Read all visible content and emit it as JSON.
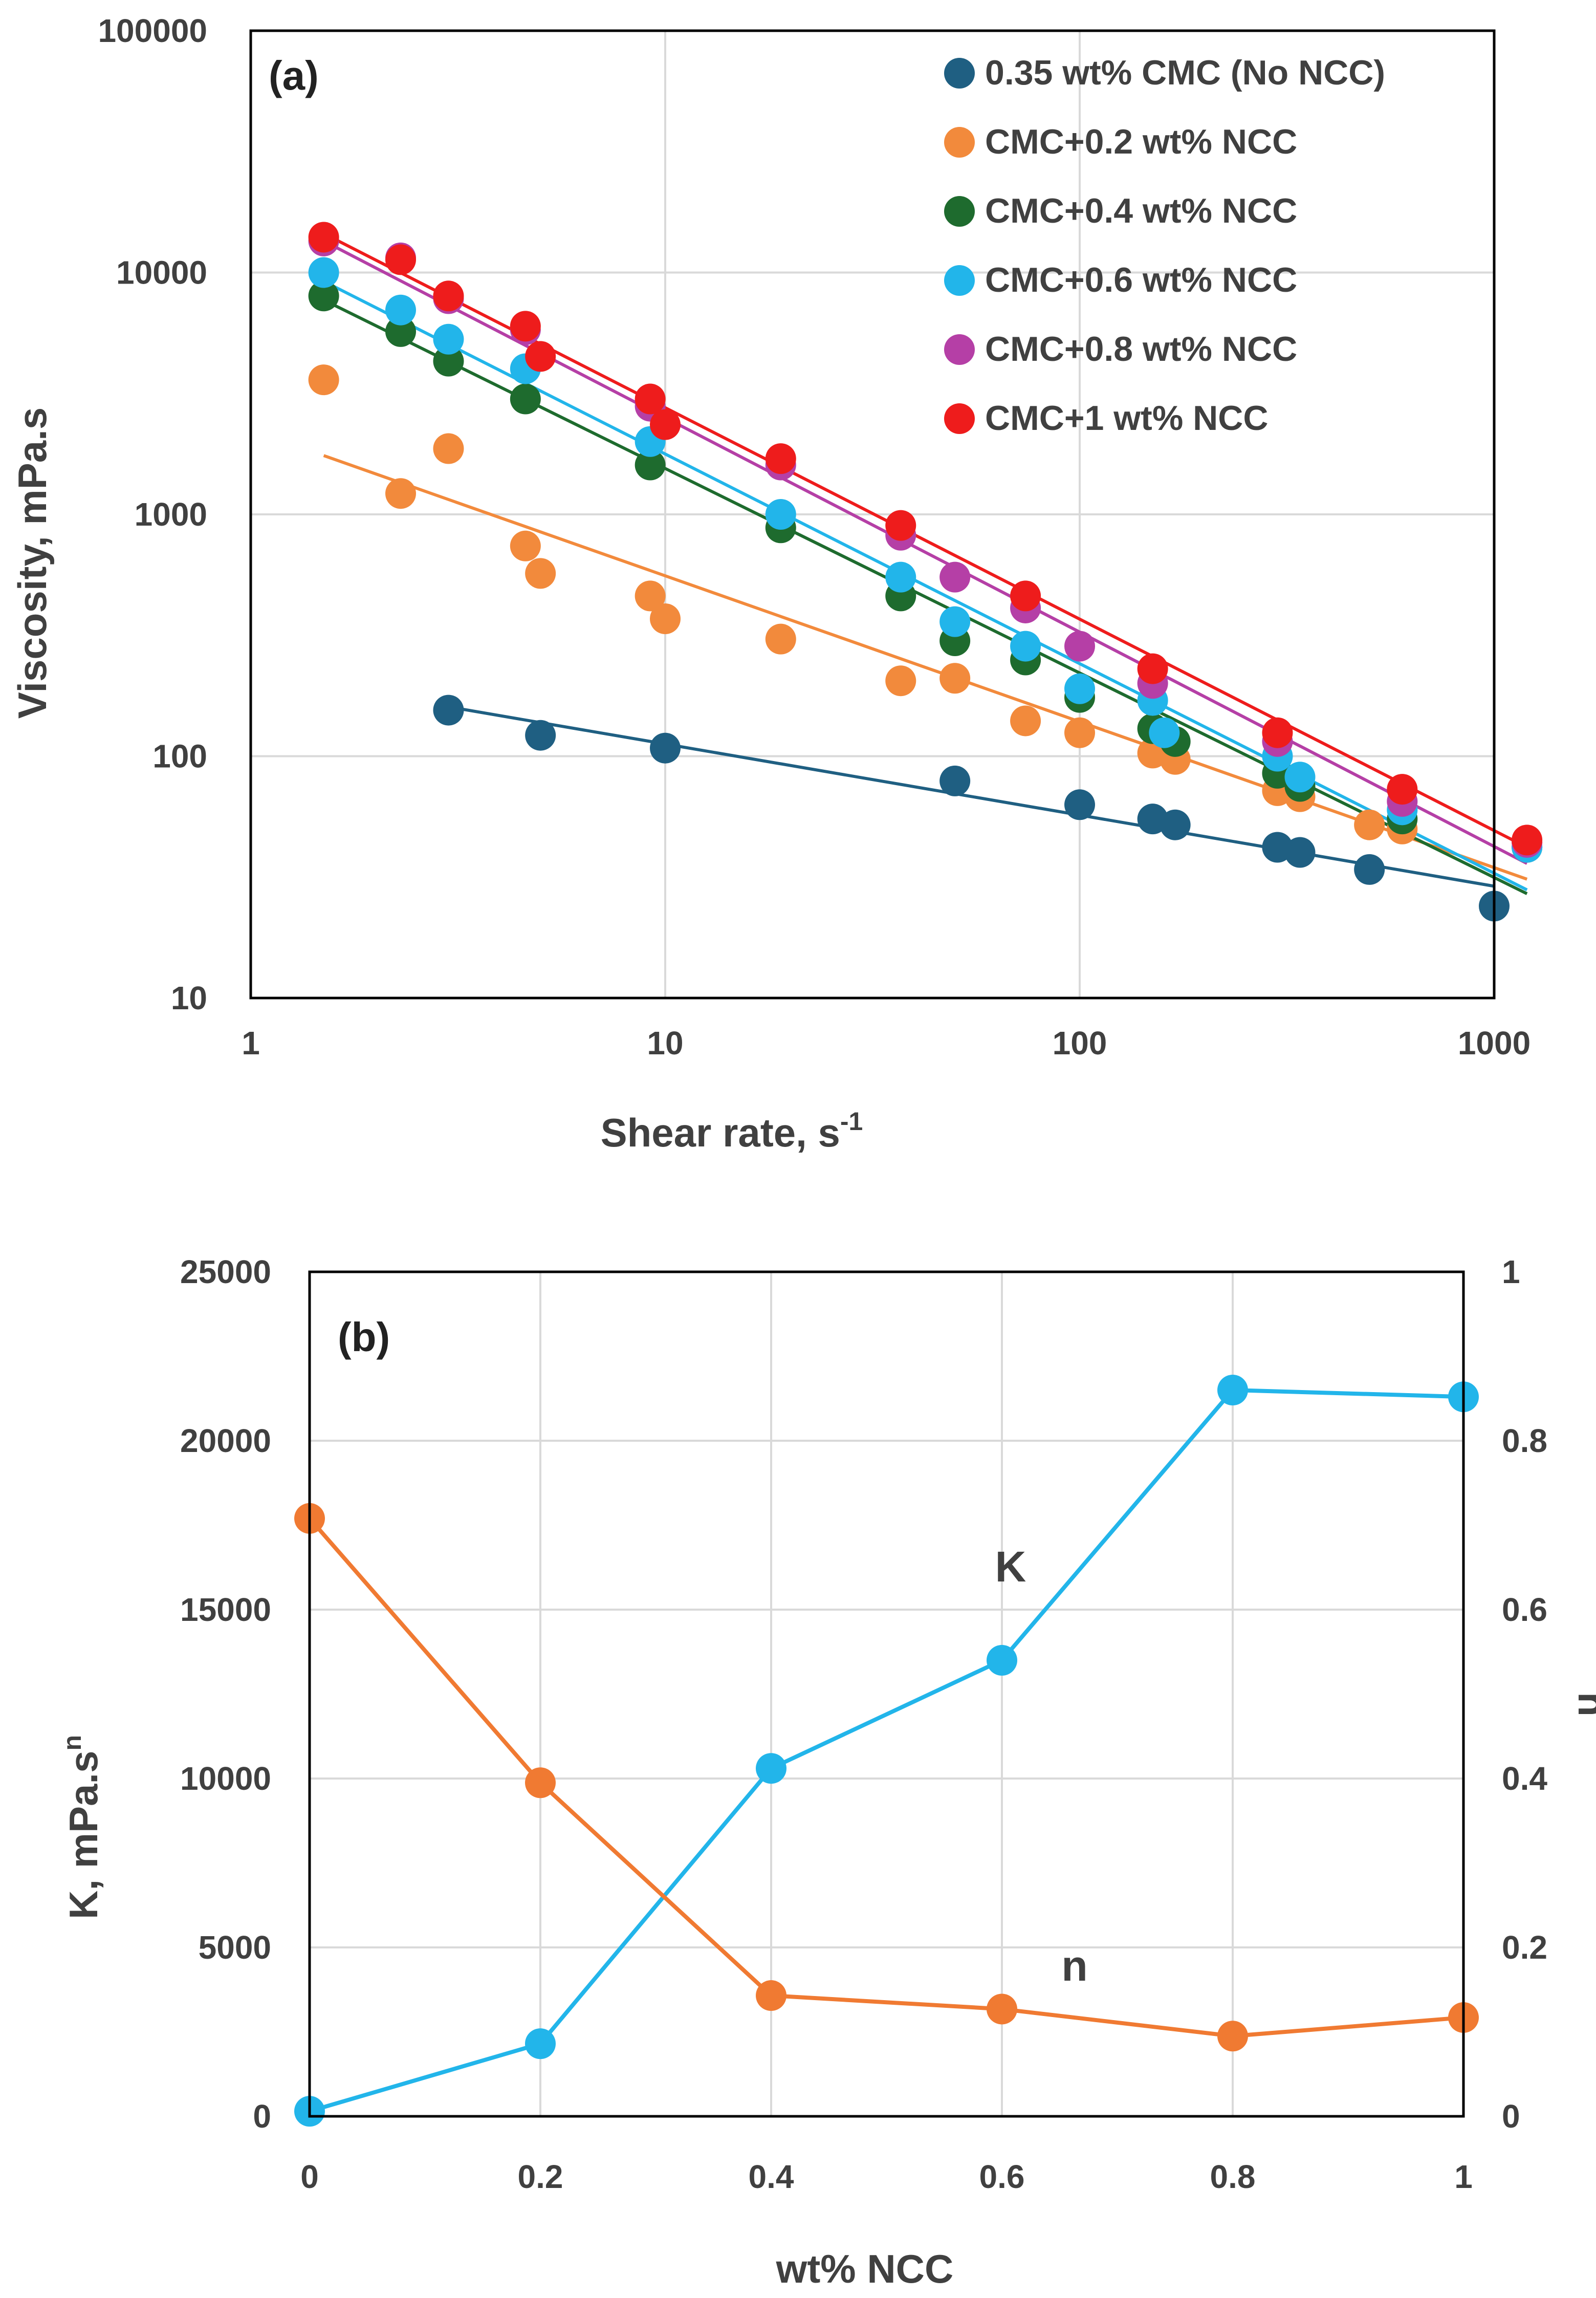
{
  "chart_data": [
    {
      "type": "scatter",
      "panel_label": "(a)",
      "xlabel": "Shear rate, s",
      "xlabel_sup": "-1",
      "ylabel": "Viscosity, mPa.s",
      "x_scale": "log",
      "y_scale": "log",
      "xlim": [
        1,
        1000
      ],
      "ylim": [
        10,
        100000
      ],
      "x_ticks": [
        "1",
        "10",
        "100",
        "1000"
      ],
      "y_ticks": [
        "10",
        "100",
        "1000",
        "10000",
        "100000"
      ],
      "grid": true,
      "legend_position": "top-right",
      "series": [
        {
          "name": "0.35 wt% CMC (No NCC)",
          "color": "#1f5f82",
          "points": [
            [
              3,
              155
            ],
            [
              5,
              122
            ],
            [
              10,
              108
            ],
            [
              50,
              79
            ],
            [
              100,
              63
            ],
            [
              150,
              55
            ],
            [
              170,
              52
            ],
            [
              300,
              42
            ],
            [
              340,
              40
            ],
            [
              500,
              34
            ],
            [
              1000,
              24
            ]
          ],
          "fit": [
            [
              3,
              160
            ],
            [
              1000,
              29
            ]
          ]
        },
        {
          "name": "CMC+0.2 wt% NCC",
          "color": "#f28a3c",
          "points": [
            [
              1.5,
              3600
            ],
            [
              2.3,
              1220
            ],
            [
              3,
              1870
            ],
            [
              4.6,
              740
            ],
            [
              5,
              570
            ],
            [
              9.2,
              460
            ],
            [
              10,
              370
            ],
            [
              19,
              305
            ],
            [
              37,
              205
            ],
            [
              50,
              210
            ],
            [
              74,
              140
            ],
            [
              100,
              125
            ],
            [
              150,
              103
            ],
            [
              170,
              97
            ],
            [
              300,
              72
            ],
            [
              340,
              68
            ],
            [
              500,
              52
            ],
            [
              600,
              50
            ],
            [
              1200,
              44
            ]
          ],
          "fit": [
            [
              1.5,
              1750
            ],
            [
              1200,
              31
            ]
          ]
        },
        {
          "name": "CMC+0.4 wt% NCC",
          "color": "#1e6b2e",
          "points": [
            [
              1.5,
              8000
            ],
            [
              2.3,
              5700
            ],
            [
              3,
              4300
            ],
            [
              4.6,
              3000
            ],
            [
              9.2,
              1600
            ],
            [
              19,
              880
            ],
            [
              37,
              460
            ],
            [
              50,
              300
            ],
            [
              74,
              250
            ],
            [
              100,
              175
            ],
            [
              150,
              130
            ],
            [
              170,
              115
            ],
            [
              300,
              85
            ],
            [
              340,
              75
            ],
            [
              600,
              55
            ],
            [
              1200,
              42
            ]
          ],
          "fit": [
            [
              1.5,
              7700
            ],
            [
              1200,
              27
            ]
          ]
        },
        {
          "name": "CMC+0.6 wt% NCC",
          "color": "#22b5ea",
          "points": [
            [
              1.5,
              10000
            ],
            [
              2.3,
              7000
            ],
            [
              3,
              5300
            ],
            [
              4.6,
              4000
            ],
            [
              9.2,
              2000
            ],
            [
              19,
              1000
            ],
            [
              37,
              550
            ],
            [
              50,
              360
            ],
            [
              74,
              285
            ],
            [
              100,
              190
            ],
            [
              150,
              170
            ],
            [
              160,
              125
            ],
            [
              300,
              100
            ],
            [
              340,
              82
            ],
            [
              600,
              60
            ],
            [
              1200,
              42
            ]
          ],
          "fit": [
            [
              1.5,
              9200
            ],
            [
              1200,
              28
            ]
          ]
        },
        {
          "name": "CMC+0.8 wt% NCC",
          "color": "#b53fa6",
          "points": [
            [
              1.5,
              13500
            ],
            [
              2.3,
              11500
            ],
            [
              3,
              7800
            ],
            [
              4.6,
              5800
            ],
            [
              9.2,
              2800
            ],
            [
              19,
              1600
            ],
            [
              37,
              820
            ],
            [
              50,
              550
            ],
            [
              74,
              410
            ],
            [
              100,
              285
            ],
            [
              150,
              200
            ],
            [
              300,
              115
            ],
            [
              600,
              65
            ],
            [
              1200,
              44
            ]
          ],
          "fit": [
            [
              1.5,
              13500
            ],
            [
              1200,
              36
            ]
          ]
        },
        {
          "name": "CMC+1 wt% NCC",
          "color": "#ee1c1c",
          "points": [
            [
              1.5,
              14000
            ],
            [
              2.3,
              11300
            ],
            [
              3,
              8000
            ],
            [
              4.6,
              6000
            ],
            [
              5,
              4500
            ],
            [
              9.2,
              3000
            ],
            [
              10,
              2350
            ],
            [
              19,
              1700
            ],
            [
              37,
              900
            ],
            [
              74,
              460
            ],
            [
              150,
              230
            ],
            [
              300,
              125
            ],
            [
              600,
              73
            ],
            [
              1200,
              45
            ]
          ],
          "fit": [
            [
              1.5,
              14500
            ],
            [
              1200,
              42
            ]
          ]
        }
      ]
    },
    {
      "type": "line",
      "panel_label": "(b)",
      "xlabel": "wt% NCC",
      "ylabel_left": "K, mPa.s",
      "ylabel_left_sup": "n",
      "ylabel_right": "n",
      "xlim": [
        0,
        1
      ],
      "ylim_left": [
        0,
        25000
      ],
      "ylim_right": [
        0,
        1
      ],
      "x_ticks": [
        "0",
        "0.2",
        "0.4",
        "0.6",
        "0.8",
        "1"
      ],
      "y_ticks_left": [
        "0",
        "5000",
        "10000",
        "15000",
        "20000",
        "25000"
      ],
      "y_ticks_right": [
        "0",
        "0.2",
        "0.4",
        "0.6",
        "0.8",
        "1"
      ],
      "grid": true,
      "x": [
        0,
        0.2,
        0.4,
        0.6,
        0.8,
        1.0
      ],
      "series": [
        {
          "name": "K",
          "axis": "left",
          "color": "#22b5ea",
          "values": [
            150,
            2150,
            10300,
            13500,
            21500,
            21300
          ]
        },
        {
          "name": "n",
          "axis": "right",
          "color": "#f07a32",
          "values": [
            0.708,
            0.395,
            0.143,
            0.127,
            0.095,
            0.117
          ]
        }
      ]
    }
  ]
}
